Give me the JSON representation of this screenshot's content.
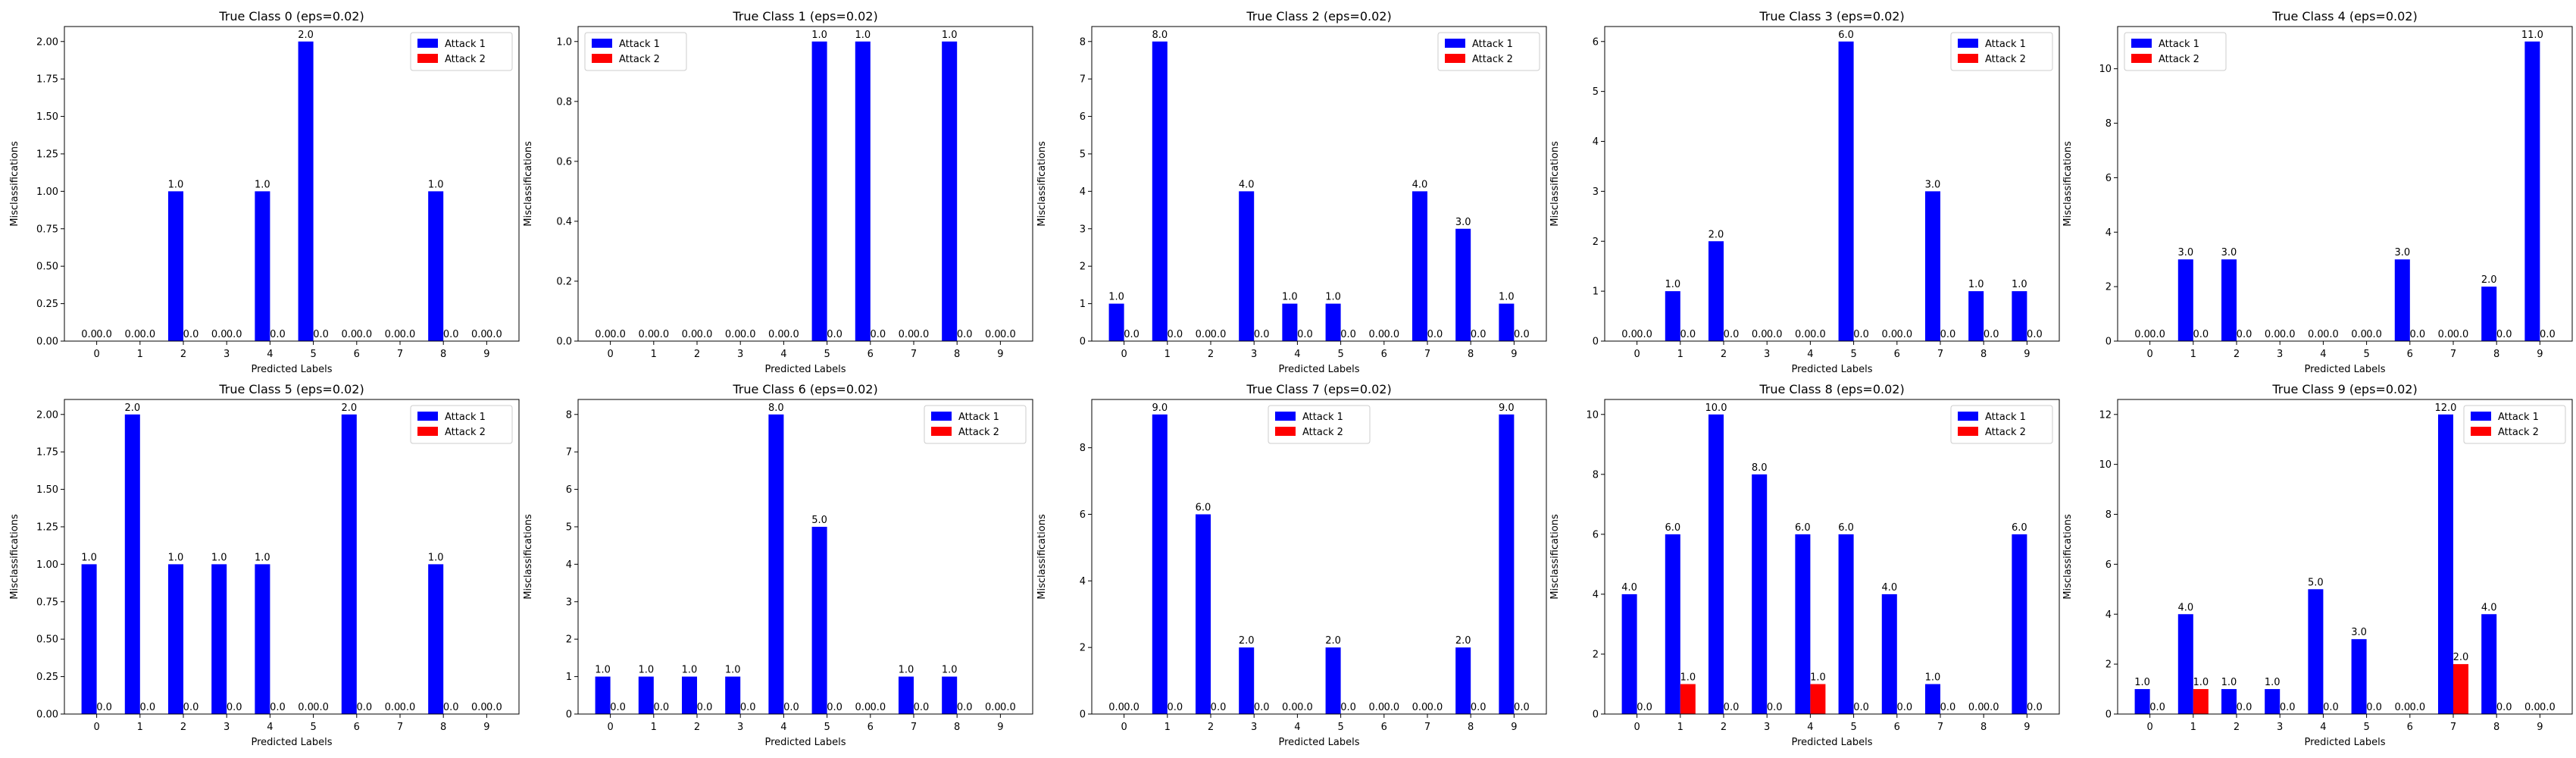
{
  "chart_data": [
    {
      "type": "bar",
      "title": "True Class 0 (eps=0.02)",
      "xlabel": "Predicted Labels",
      "ylabel": "Misclassifications",
      "categories": [
        "0",
        "1",
        "2",
        "3",
        "4",
        "5",
        "6",
        "7",
        "8",
        "9"
      ],
      "series": [
        {
          "name": "Attack 1",
          "color": "#0000ff",
          "values": [
            0,
            0,
            1,
            0,
            1,
            2,
            0,
            0,
            1,
            0
          ]
        },
        {
          "name": "Attack 2",
          "color": "#ff0000",
          "values": [
            0,
            0,
            0,
            0,
            0,
            0,
            0,
            0,
            0,
            0
          ]
        }
      ],
      "ylim": [
        0,
        2.1
      ],
      "yticks": [
        "0.00",
        "0.25",
        "0.50",
        "0.75",
        "1.00",
        "1.25",
        "1.50",
        "1.75",
        "2.00"
      ],
      "legend": "top-right"
    },
    {
      "type": "bar",
      "title": "True Class 1 (eps=0.02)",
      "xlabel": "Predicted Labels",
      "ylabel": "Misclassifications",
      "categories": [
        "0",
        "1",
        "2",
        "3",
        "4",
        "5",
        "6",
        "7",
        "8",
        "9"
      ],
      "series": [
        {
          "name": "Attack 1",
          "color": "#0000ff",
          "values": [
            0,
            0,
            0,
            0,
            0,
            1,
            1,
            0,
            1,
            0
          ]
        },
        {
          "name": "Attack 2",
          "color": "#ff0000",
          "values": [
            0,
            0,
            0,
            0,
            0,
            0,
            0,
            0,
            0,
            0
          ]
        }
      ],
      "ylim": [
        0,
        1.05
      ],
      "yticks": [
        "0.0",
        "0.2",
        "0.4",
        "0.6",
        "0.8",
        "1.0"
      ],
      "legend": "top-left"
    },
    {
      "type": "bar",
      "title": "True Class 2 (eps=0.02)",
      "xlabel": "Predicted Labels",
      "ylabel": "Misclassifications",
      "categories": [
        "0",
        "1",
        "2",
        "3",
        "4",
        "5",
        "6",
        "7",
        "8",
        "9"
      ],
      "series": [
        {
          "name": "Attack 1",
          "color": "#0000ff",
          "values": [
            1,
            8,
            0,
            4,
            1,
            1,
            0,
            4,
            3,
            1
          ]
        },
        {
          "name": "Attack 2",
          "color": "#ff0000",
          "values": [
            0,
            0,
            0,
            0,
            0,
            0,
            0,
            0,
            0,
            0
          ]
        }
      ],
      "ylim": [
        0,
        8.4
      ],
      "yticks": [
        "0",
        "1",
        "2",
        "3",
        "4",
        "5",
        "6",
        "7",
        "8"
      ],
      "legend": "top-right"
    },
    {
      "type": "bar",
      "title": "True Class 3 (eps=0.02)",
      "xlabel": "Predicted Labels",
      "ylabel": "Misclassifications",
      "categories": [
        "0",
        "1",
        "2",
        "3",
        "4",
        "5",
        "6",
        "7",
        "8",
        "9"
      ],
      "series": [
        {
          "name": "Attack 1",
          "color": "#0000ff",
          "values": [
            0,
            1,
            2,
            0,
            0,
            6,
            0,
            3,
            1,
            1
          ]
        },
        {
          "name": "Attack 2",
          "color": "#ff0000",
          "values": [
            0,
            0,
            0,
            0,
            0,
            0,
            0,
            0,
            0,
            0
          ]
        }
      ],
      "ylim": [
        0,
        6.3
      ],
      "yticks": [
        "0",
        "1",
        "2",
        "3",
        "4",
        "5",
        "6"
      ],
      "legend": "top-right"
    },
    {
      "type": "bar",
      "title": "True Class 4 (eps=0.02)",
      "xlabel": "Predicted Labels",
      "ylabel": "Misclassifications",
      "categories": [
        "0",
        "1",
        "2",
        "3",
        "4",
        "5",
        "6",
        "7",
        "8",
        "9"
      ],
      "series": [
        {
          "name": "Attack 1",
          "color": "#0000ff",
          "values": [
            0,
            3,
            3,
            0,
            0,
            0,
            3,
            0,
            2,
            11
          ]
        },
        {
          "name": "Attack 2",
          "color": "#ff0000",
          "values": [
            0,
            0,
            0,
            0,
            0,
            0,
            0,
            0,
            0,
            0
          ]
        }
      ],
      "ylim": [
        0,
        11.55
      ],
      "yticks": [
        "0",
        "2",
        "4",
        "6",
        "8",
        "10"
      ],
      "legend": "top-left"
    },
    {
      "type": "bar",
      "title": "True Class 5 (eps=0.02)",
      "xlabel": "Predicted Labels",
      "ylabel": "Misclassifications",
      "categories": [
        "0",
        "1",
        "2",
        "3",
        "4",
        "5",
        "6",
        "7",
        "8",
        "9"
      ],
      "series": [
        {
          "name": "Attack 1",
          "color": "#0000ff",
          "values": [
            1,
            2,
            1,
            1,
            1,
            0,
            2,
            0,
            1,
            0
          ]
        },
        {
          "name": "Attack 2",
          "color": "#ff0000",
          "values": [
            0,
            0,
            0,
            0,
            0,
            0,
            0,
            0,
            0,
            0
          ]
        }
      ],
      "ylim": [
        0,
        2.1
      ],
      "yticks": [
        "0.00",
        "0.25",
        "0.50",
        "0.75",
        "1.00",
        "1.25",
        "1.50",
        "1.75",
        "2.00"
      ],
      "legend": "top-right"
    },
    {
      "type": "bar",
      "title": "True Class 6 (eps=0.02)",
      "xlabel": "Predicted Labels",
      "ylabel": "Misclassifications",
      "categories": [
        "0",
        "1",
        "2",
        "3",
        "4",
        "5",
        "6",
        "7",
        "8",
        "9"
      ],
      "series": [
        {
          "name": "Attack 1",
          "color": "#0000ff",
          "values": [
            1,
            1,
            1,
            1,
            8,
            5,
            0,
            1,
            1,
            0
          ]
        },
        {
          "name": "Attack 2",
          "color": "#ff0000",
          "values": [
            0,
            0,
            0,
            0,
            0,
            0,
            0,
            0,
            0,
            0
          ]
        }
      ],
      "ylim": [
        0,
        8.4
      ],
      "yticks": [
        "0",
        "1",
        "2",
        "3",
        "4",
        "5",
        "6",
        "7",
        "8"
      ],
      "legend": "top-right"
    },
    {
      "type": "bar",
      "title": "True Class 7 (eps=0.02)",
      "xlabel": "Predicted Labels",
      "ylabel": "Misclassifications",
      "categories": [
        "0",
        "1",
        "2",
        "3",
        "4",
        "5",
        "6",
        "7",
        "8",
        "9"
      ],
      "series": [
        {
          "name": "Attack 1",
          "color": "#0000ff",
          "values": [
            0,
            9,
            6,
            2,
            0,
            2,
            0,
            0,
            2,
            9
          ]
        },
        {
          "name": "Attack 2",
          "color": "#ff0000",
          "values": [
            0,
            0,
            0,
            0,
            0,
            0,
            0,
            0,
            0,
            0
          ]
        }
      ],
      "ylim": [
        0,
        9.45
      ],
      "yticks": [
        "0",
        "2",
        "4",
        "6",
        "8"
      ],
      "legend": "top-center"
    },
    {
      "type": "bar",
      "title": "True Class 8 (eps=0.02)",
      "xlabel": "Predicted Labels",
      "ylabel": "Misclassifications",
      "categories": [
        "0",
        "1",
        "2",
        "3",
        "4",
        "5",
        "6",
        "7",
        "8",
        "9"
      ],
      "series": [
        {
          "name": "Attack 1",
          "color": "#0000ff",
          "values": [
            4,
            6,
            10,
            8,
            6,
            6,
            4,
            1,
            0,
            6
          ]
        },
        {
          "name": "Attack 2",
          "color": "#ff0000",
          "values": [
            0,
            1,
            0,
            0,
            1,
            0,
            0,
            0,
            0,
            0
          ]
        }
      ],
      "ylim": [
        0,
        10.5
      ],
      "yticks": [
        "0",
        "2",
        "4",
        "6",
        "8",
        "10"
      ],
      "legend": "top-right"
    },
    {
      "type": "bar",
      "title": "True Class 9 (eps=0.02)",
      "xlabel": "Predicted Labels",
      "ylabel": "Misclassifications",
      "categories": [
        "0",
        "1",
        "2",
        "3",
        "4",
        "5",
        "6",
        "7",
        "8",
        "9"
      ],
      "series": [
        {
          "name": "Attack 1",
          "color": "#0000ff",
          "values": [
            1,
            4,
            1,
            1,
            5,
            3,
            0,
            12,
            4,
            0
          ]
        },
        {
          "name": "Attack 2",
          "color": "#ff0000",
          "values": [
            0,
            1,
            0,
            0,
            0,
            0,
            0,
            2,
            0,
            0
          ]
        }
      ],
      "ylim": [
        0,
        12.6
      ],
      "yticks": [
        "0",
        "2",
        "4",
        "6",
        "8",
        "10",
        "12"
      ],
      "legend": "top-right"
    }
  ]
}
